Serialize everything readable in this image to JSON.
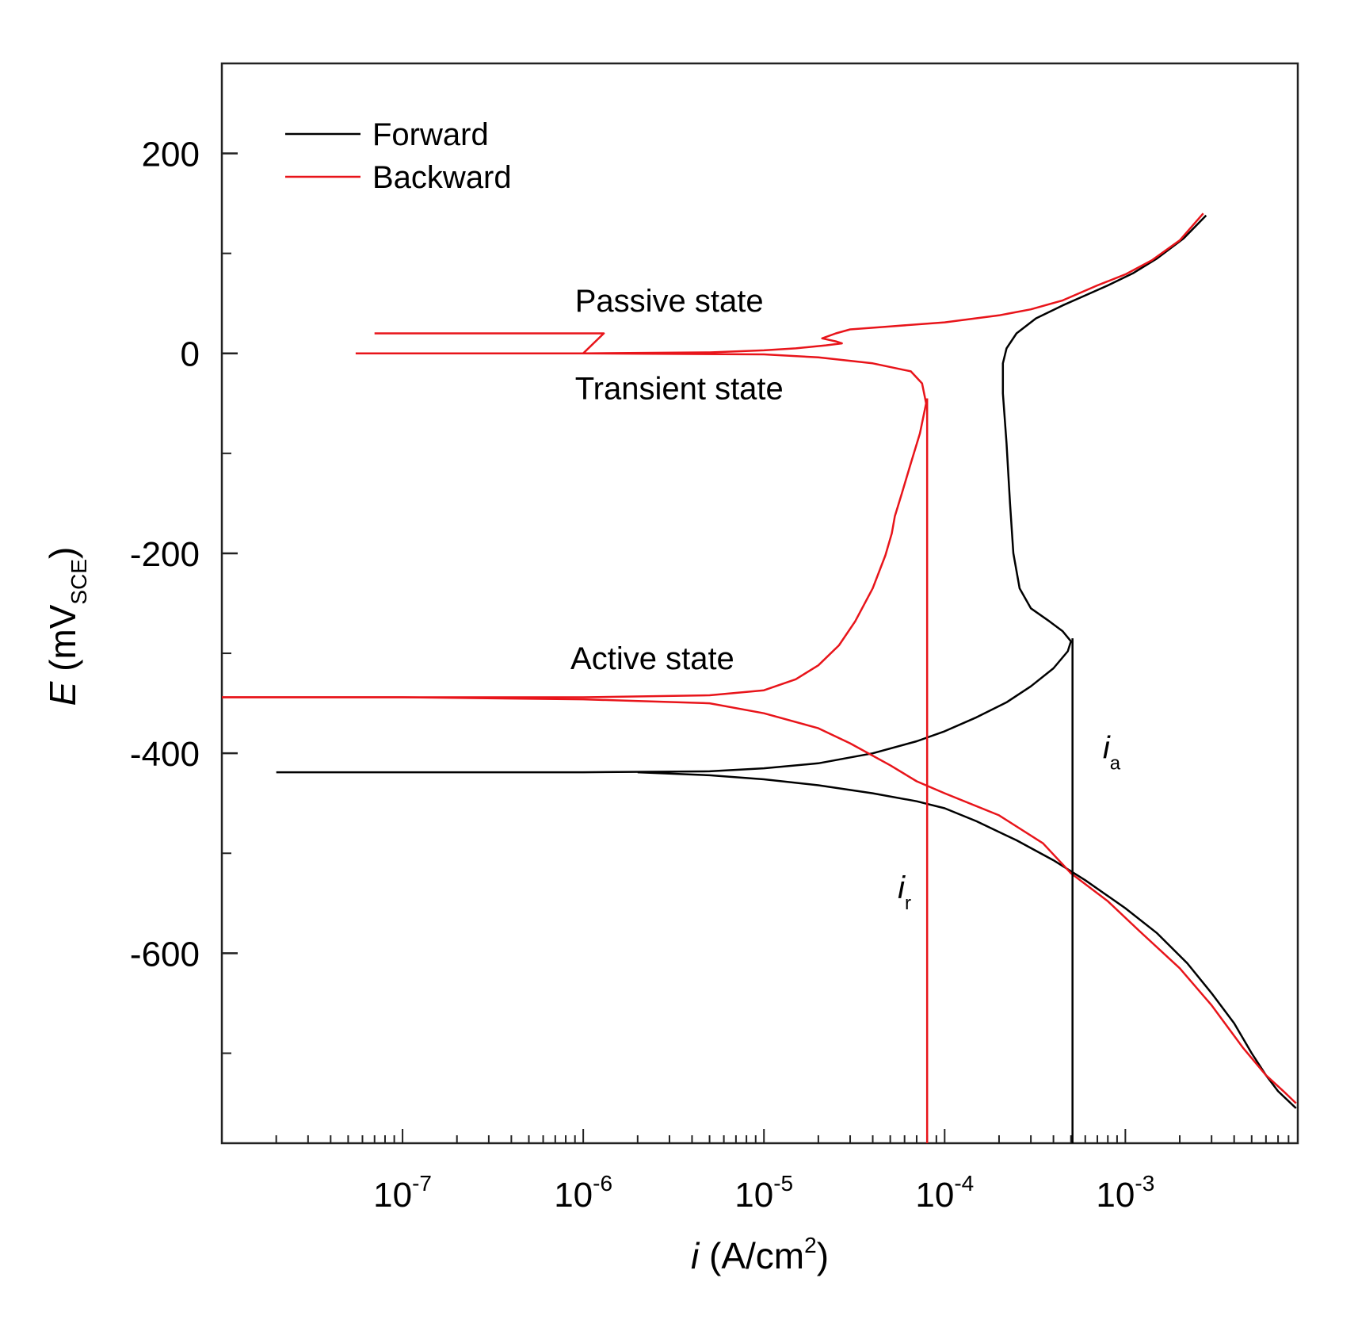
{
  "chart_data": {
    "type": "line",
    "xscale": "log",
    "xlabel": {
      "var": "i",
      "unit": "(A/cm",
      "sup": "2",
      "close": ")"
    },
    "ylabel": {
      "var": "E",
      "unit": "(mV",
      "sub": "SCE",
      "close": ")"
    },
    "xlim": [
      1e-08,
      0.009
    ],
    "ylim": [
      -790,
      290
    ],
    "x_ticks": [
      {
        "value": 1e-07,
        "base": "10",
        "exp": "-7"
      },
      {
        "value": 1e-06,
        "base": "10",
        "exp": "-6"
      },
      {
        "value": 1e-05,
        "base": "10",
        "exp": "-5"
      },
      {
        "value": 0.0001,
        "base": "10",
        "exp": "-4"
      },
      {
        "value": 0.001,
        "base": "10",
        "exp": "-3"
      }
    ],
    "y_ticks": [
      {
        "value": 200,
        "label": "200"
      },
      {
        "value": 0,
        "label": "0"
      },
      {
        "value": -200,
        "label": "-200"
      },
      {
        "value": -400,
        "label": "-400"
      },
      {
        "value": -600,
        "label": "-600"
      }
    ],
    "y_minor_ticks": [
      100,
      -100,
      -300,
      -500,
      -700
    ],
    "legend": [
      {
        "name": "Forward",
        "color": "#000000"
      },
      {
        "name": "Backward",
        "color": "#e8141a"
      }
    ],
    "series": [
      {
        "name": "Forward",
        "color": "#000000",
        "segments": [
          [
            [
              2e-08,
              -419
            ],
            [
              1e-07,
              -419
            ],
            [
              1e-06,
              -419
            ],
            [
              5e-06,
              -418
            ],
            [
              1e-05,
              -415
            ],
            [
              2e-05,
              -410
            ],
            [
              4e-05,
              -400
            ],
            [
              7e-05,
              -388
            ],
            [
              0.0001,
              -378
            ],
            [
              0.00015,
              -364
            ],
            [
              0.00022,
              -349
            ],
            [
              0.0003,
              -333
            ],
            [
              0.0004,
              -315
            ],
            [
              0.00048,
              -298
            ],
            [
              0.0005,
              -288
            ],
            [
              0.00045,
              -278
            ],
            [
              0.00038,
              -268
            ],
            [
              0.0003,
              -255
            ],
            [
              0.00026,
              -235
            ],
            [
              0.00024,
              -200
            ],
            [
              0.00023,
              -150
            ],
            [
              0.00022,
              -90
            ],
            [
              0.00021,
              -40
            ],
            [
              0.00021,
              -10
            ],
            [
              0.00022,
              5
            ],
            [
              0.00025,
              20
            ],
            [
              0.00032,
              35
            ],
            [
              0.00045,
              48
            ],
            [
              0.0006,
              58
            ],
            [
              0.0008,
              68
            ],
            [
              0.0011,
              80
            ],
            [
              0.0015,
              95
            ],
            [
              0.0021,
              115
            ],
            [
              0.0028,
              138
            ]
          ],
          [
            [
              2e-06,
              -419
            ],
            [
              5e-06,
              -422
            ],
            [
              1e-05,
              -426
            ],
            [
              2e-05,
              -432
            ],
            [
              4e-05,
              -440
            ],
            [
              7e-05,
              -448
            ],
            [
              0.0001,
              -455
            ],
            [
              0.00015,
              -468
            ],
            [
              0.00025,
              -487
            ],
            [
              0.0004,
              -507
            ],
            [
              0.0006,
              -527
            ],
            [
              0.001,
              -555
            ],
            [
              0.0015,
              -580
            ],
            [
              0.0022,
              -610
            ],
            [
              0.003,
              -640
            ],
            [
              0.004,
              -670
            ],
            [
              0.005,
              -700
            ],
            [
              0.006,
              -722
            ],
            [
              0.007,
              -738
            ],
            [
              0.0088,
              -755
            ]
          ]
        ]
      },
      {
        "name": "Backward",
        "color": "#e8141a",
        "segments": [
          [
            [
              1e-08,
              -344
            ],
            [
              1e-07,
              -344
            ],
            [
              1e-06,
              -344
            ],
            [
              5e-06,
              -342
            ],
            [
              1e-05,
              -337
            ],
            [
              1.5e-05,
              -326
            ],
            [
              2e-05,
              -312
            ],
            [
              2.6e-05,
              -292
            ],
            [
              3.2e-05,
              -268
            ],
            [
              4e-05,
              -235
            ],
            [
              4.7e-05,
              -202
            ],
            [
              5.1e-05,
              -180
            ],
            [
              5.3e-05,
              -163
            ],
            [
              5.8e-05,
              -140
            ],
            [
              6.5e-05,
              -110
            ],
            [
              7.3e-05,
              -80
            ],
            [
              7.9e-05,
              -50
            ],
            [
              7.5e-05,
              -30
            ],
            [
              6.5e-05,
              -18
            ],
            [
              4e-05,
              -10
            ],
            [
              2e-05,
              -4
            ],
            [
              1e-05,
              -1
            ],
            [
              1e-06,
              0
            ],
            [
              1e-07,
              0
            ],
            [
              5.5e-08,
              0
            ]
          ],
          [
            [
              1e-08,
              -344
            ],
            [
              1e-07,
              -344
            ],
            [
              1e-06,
              -346
            ],
            [
              5e-06,
              -350
            ],
            [
              1e-05,
              -360
            ],
            [
              2e-05,
              -375
            ],
            [
              3e-05,
              -390
            ],
            [
              5e-05,
              -412
            ],
            [
              7e-05,
              -428
            ],
            [
              0.0001,
              -440
            ],
            [
              0.0002,
              -462
            ],
            [
              0.00035,
              -490
            ],
            [
              0.0005,
              -520
            ],
            [
              0.0008,
              -548
            ],
            [
              0.0012,
              -578
            ],
            [
              0.002,
              -615
            ],
            [
              0.003,
              -652
            ],
            [
              0.0045,
              -695
            ],
            [
              0.006,
              -722
            ],
            [
              0.0075,
              -738
            ],
            [
              0.0088,
              -750
            ]
          ],
          [
            [
              0.0027,
              140
            ],
            [
              0.002,
              113
            ],
            [
              0.0014,
              93
            ],
            [
              0.001,
              79
            ],
            [
              0.0007,
              68
            ],
            [
              0.00045,
              53
            ],
            [
              0.0003,
              44
            ],
            [
              0.0002,
              38
            ],
            [
              0.0001,
              31
            ],
            [
              5e-05,
              27
            ],
            [
              3e-05,
              24
            ],
            [
              2.5e-05,
              20
            ],
            [
              2.1e-05,
              15
            ],
            [
              2.5e-05,
              12
            ],
            [
              2.7e-05,
              10
            ],
            [
              2.2e-05,
              8
            ],
            [
              1.5e-05,
              5
            ],
            [
              1e-05,
              3
            ],
            [
              5e-06,
              1
            ],
            [
              1e-06,
              0
            ],
            [
              1.3e-06,
              20
            ],
            [
              1e-07,
              20
            ],
            [
              7e-08,
              20
            ]
          ]
        ]
      }
    ],
    "vertical_markers": [
      {
        "x": 8e-05,
        "from": -790,
        "to": -45,
        "color": "#e8141a",
        "label": "i",
        "sub": "r",
        "label_pos": {
          "x": 5.5e-05,
          "y": -545
        }
      },
      {
        "x": 0.00051,
        "from": -790,
        "to": -285,
        "color": "#000000",
        "label": "i",
        "sub": "a",
        "label_pos": {
          "x": 0.00075,
          "y": -405
        }
      }
    ],
    "annotations": [
      {
        "text": "Passive state",
        "x": 9e-07,
        "y": 42
      },
      {
        "text": "Transient state",
        "x": 9e-07,
        "y": -46
      },
      {
        "text": "Active state",
        "x": 8.5e-07,
        "y": -316
      }
    ]
  }
}
